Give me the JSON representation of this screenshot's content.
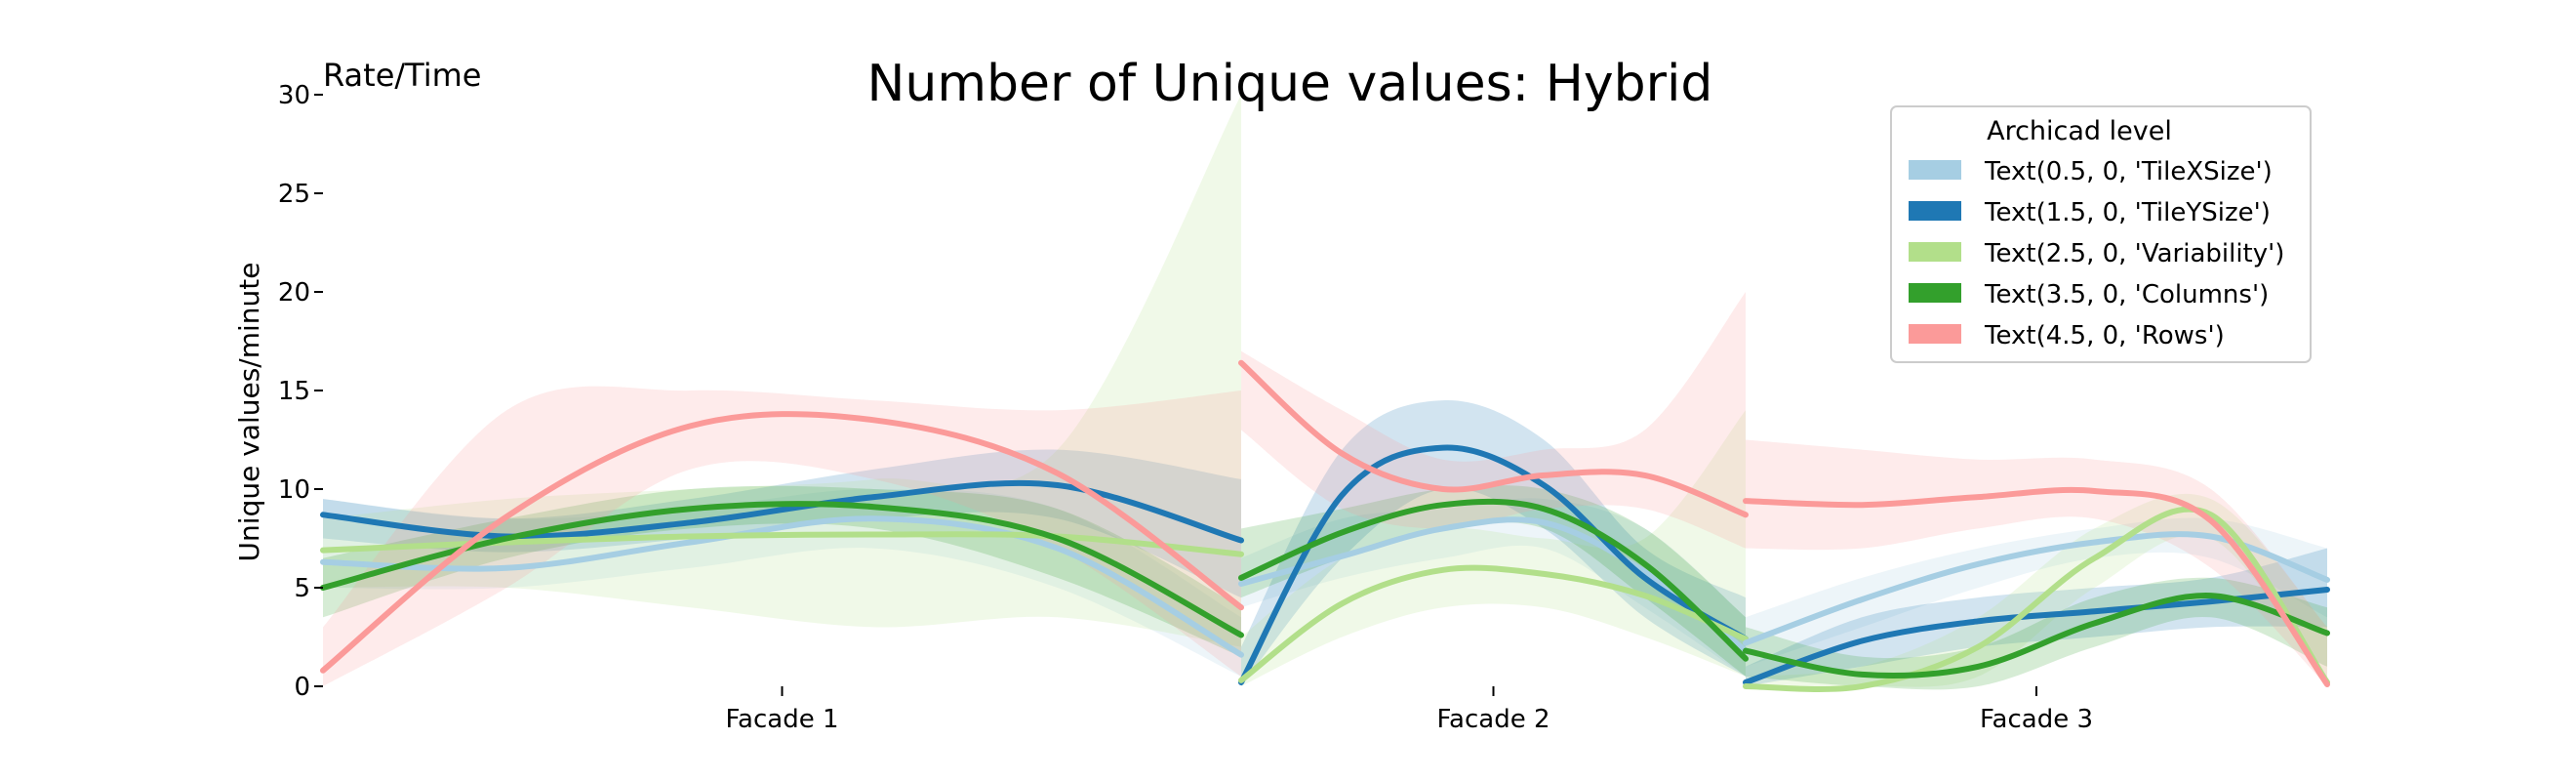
{
  "chart_data": {
    "type": "line",
    "title": "Number of Unique values: Hybrid",
    "corner_label": "Rate/Time",
    "xlabel": "",
    "ylabel": "Unique values/minute",
    "ylim": [
      0,
      30
    ],
    "yticks": [
      0,
      5,
      10,
      15,
      20,
      25,
      30
    ],
    "grid": false,
    "legend": {
      "title": "Archicad level",
      "placement": "top-right",
      "entries": [
        "Text(0.5, 0, 'TileXSize')",
        "Text(1.5, 0, 'TileYSize')",
        "Text(2.5, 0, 'Variability')",
        "Text(3.5, 0, 'Columns')",
        "Text(4.5, 0, 'Rows')"
      ]
    },
    "colors": [
      "#a6cee3",
      "#1f78b4",
      "#b2df8a",
      "#33a02c",
      "#fb9a99"
    ],
    "panels": [
      {
        "label": "Facade 1",
        "x": [
          0,
          0.2,
          0.4,
          0.6,
          0.8,
          1
        ],
        "series": [
          {
            "values": [
              6.3,
              6.0,
              7.3,
              8.5,
              7.0,
              1.6
            ],
            "lower": [
              5.0,
              5.0,
              6.0,
              7.0,
              5.0,
              0.5
            ],
            "upper": [
              9.5,
              8.5,
              9.0,
              10.0,
              9.0,
              3.5
            ]
          },
          {
            "values": [
              8.7,
              7.6,
              8.3,
              9.6,
              10.2,
              7.4
            ],
            "lower": [
              7.5,
              6.8,
              7.5,
              8.5,
              8.5,
              4.5
            ],
            "upper": [
              9.5,
              8.5,
              9.5,
              11.0,
              12.0,
              10.5
            ]
          },
          {
            "values": [
              6.9,
              7.3,
              7.6,
              7.7,
              7.6,
              6.7
            ],
            "lower": [
              5.0,
              5.0,
              4.0,
              3.0,
              3.5,
              2.0
            ],
            "upper": [
              8.5,
              9.5,
              10.0,
              10.5,
              12.0,
              30.0
            ]
          },
          {
            "values": [
              5.0,
              7.5,
              9.0,
              9.1,
              7.5,
              2.6
            ],
            "lower": [
              3.5,
              6.5,
              8.0,
              8.0,
              5.5,
              1.5
            ],
            "upper": [
              6.5,
              8.5,
              10.0,
              10.0,
              9.0,
              4.0
            ]
          },
          {
            "values": [
              0.8,
              8.6,
              13.2,
              13.5,
              10.8,
              4.0
            ],
            "lower": [
              0,
              5.0,
              11.0,
              10.5,
              7.0,
              0.5
            ],
            "upper": [
              3.0,
              14.0,
              15.0,
              14.5,
              14.0,
              15.0
            ]
          }
        ]
      },
      {
        "label": "Facade 2",
        "x": [
          0,
          0.2,
          0.4,
          0.6,
          0.8,
          1
        ],
        "series": [
          {
            "values": [
              5.2,
              6.6,
              8.0,
              8.3,
              5.8,
              1.8
            ],
            "lower": [
              4.0,
              5.5,
              6.5,
              7.0,
              4.0,
              0.5
            ],
            "upper": [
              6.5,
              8.5,
              9.0,
              9.5,
              8.0,
              3.5
            ]
          },
          {
            "values": [
              0.2,
              9.7,
              12.1,
              10.2,
              5.5,
              2.4
            ],
            "lower": [
              0,
              6.5,
              10.0,
              8.0,
              3.5,
              0.5
            ],
            "upper": [
              2.0,
              12.0,
              14.5,
              12.5,
              7.0,
              4.5
            ]
          },
          {
            "values": [
              0.3,
              4.2,
              5.9,
              5.7,
              4.6,
              2.4
            ],
            "lower": [
              0,
              2.5,
              4.0,
              4.0,
              2.5,
              0.5
            ],
            "upper": [
              2.5,
              6.5,
              8.0,
              7.5,
              7.5,
              14.0
            ]
          },
          {
            "values": [
              5.5,
              7.8,
              9.2,
              9.0,
              6.2,
              1.4
            ],
            "lower": [
              4.5,
              6.5,
              8.0,
              8.0,
              4.5,
              0.5
            ],
            "upper": [
              8.0,
              9.0,
              10.0,
              10.0,
              8.0,
              3.5
            ]
          },
          {
            "values": [
              16.4,
              11.8,
              10.0,
              10.7,
              10.7,
              8.7
            ],
            "lower": [
              13.0,
              9.0,
              8.0,
              9.0,
              9.0,
              7.0
            ],
            "upper": [
              17.0,
              14.0,
              11.5,
              12.0,
              13.0,
              20.0
            ]
          }
        ]
      },
      {
        "label": "Facade 3",
        "x": [
          0,
          0.2,
          0.4,
          0.6,
          0.8,
          1
        ],
        "series": [
          {
            "values": [
              2.2,
              4.4,
              6.2,
              7.3,
              7.6,
              5.4
            ],
            "lower": [
              1.0,
              3.0,
              5.0,
              6.5,
              6.5,
              3.5
            ],
            "upper": [
              3.5,
              5.5,
              7.0,
              8.0,
              8.5,
              7.0
            ]
          },
          {
            "values": [
              0.2,
              2.3,
              3.3,
              3.8,
              4.3,
              4.9
            ],
            "lower": [
              0,
              1.0,
              2.0,
              2.5,
              3.0,
              3.0
            ],
            "upper": [
              1.0,
              3.5,
              4.5,
              5.0,
              5.5,
              7.0
            ]
          },
          {
            "values": [
              0.0,
              0.0,
              2.0,
              6.5,
              8.7,
              0.2
            ],
            "lower": [
              0,
              0,
              0.5,
              5.0,
              7.5,
              0
            ],
            "upper": [
              0.5,
              1.0,
              3.5,
              8.0,
              9.5,
              3.0
            ]
          },
          {
            "values": [
              1.8,
              0.6,
              1.0,
              3.2,
              4.6,
              2.7
            ],
            "lower": [
              0.5,
              0,
              0,
              2.0,
              3.5,
              1.0
            ],
            "upper": [
              3.0,
              1.5,
              2.0,
              4.5,
              5.5,
              4.0
            ]
          },
          {
            "values": [
              9.4,
              9.2,
              9.6,
              9.9,
              8.4,
              0.1
            ],
            "lower": [
              7.0,
              7.0,
              8.0,
              8.5,
              6.0,
              0
            ],
            "upper": [
              12.5,
              12.0,
              11.5,
              11.5,
              10.0,
              3.0
            ]
          }
        ]
      }
    ]
  }
}
